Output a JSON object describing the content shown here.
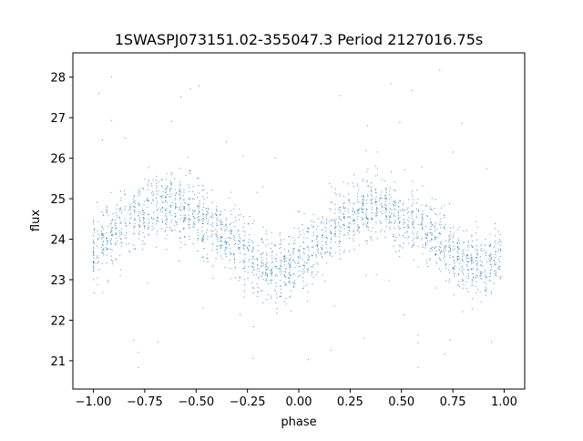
{
  "chart_data": {
    "type": "scatter",
    "title": "1SWASPJ073151.02-355047.3 Period 2127016.75s",
    "xlabel": "phase",
    "ylabel": "flux",
    "xlim": [
      -1.1,
      1.1
    ],
    "ylim": [
      20.3,
      28.6
    ],
    "x_ticks": [
      "−1.00",
      "−0.75",
      "−0.50",
      "−0.25",
      "0.00",
      "0.25",
      "0.50",
      "0.75",
      "1.00"
    ],
    "y_ticks": [
      "21",
      "22",
      "23",
      "24",
      "25",
      "26",
      "27",
      "28"
    ],
    "grid": false,
    "legend": "none",
    "marker_color": "#1f77b4",
    "series": [
      {
        "profile_phase": [
          -1.0,
          -0.9,
          -0.8,
          -0.7,
          -0.6,
          -0.5,
          -0.4,
          -0.3,
          -0.2,
          -0.1,
          0.0,
          0.1,
          0.2,
          0.3,
          0.4,
          0.5,
          0.6,
          0.7,
          0.8,
          0.9,
          1.0
        ],
        "profile_flux": [
          23.6,
          24.2,
          24.5,
          24.8,
          24.9,
          24.5,
          24.2,
          23.9,
          23.4,
          23.2,
          23.5,
          23.9,
          24.4,
          24.7,
          24.9,
          24.5,
          24.3,
          23.9,
          23.5,
          23.3,
          23.6
        ],
        "scatter_sigma": 0.55,
        "outlier_range": [
          20.7,
          28.2
        ],
        "n_points": 2400
      }
    ]
  }
}
